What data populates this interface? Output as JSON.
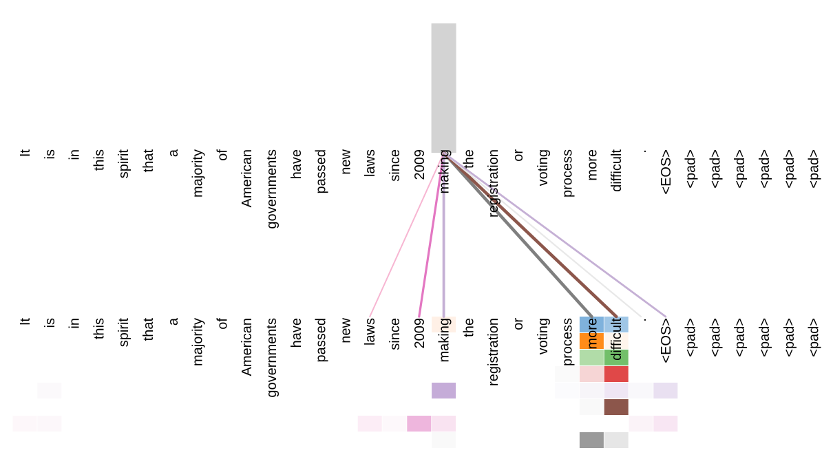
{
  "tokens": [
    "It",
    "is",
    "in",
    "this",
    "spirit",
    "that",
    "a",
    "majority",
    "of",
    "American",
    "governments",
    "have",
    "passed",
    "new",
    "laws",
    "since",
    "2009",
    "making",
    "the",
    "registration",
    "or",
    "voting",
    "process",
    "more",
    "difficult",
    ".",
    "<EOS>",
    "<pad>",
    "<pad>",
    "<pad>",
    "<pad>",
    "<pad>",
    "<pad>"
  ],
  "selected_index": 17,
  "highlight_color": "#d3d3d3",
  "attention_links": [
    {
      "target": 14,
      "color": "#f7b6d2",
      "weight": 0.25
    },
    {
      "target": 16,
      "color": "#e377c2",
      "weight": 0.55
    },
    {
      "target": 17,
      "color": "#c5b0d5",
      "weight": 0.7
    },
    {
      "target": 23,
      "color": "#7f7f7f",
      "weight": 0.9
    },
    {
      "target": 24,
      "color": "#8c564b",
      "weight": 0.9
    },
    {
      "target": 25,
      "color": "#e8e8e8",
      "weight": 0.3
    },
    {
      "target": 26,
      "color": "#c5b0d5",
      "weight": 0.45
    }
  ],
  "head_cells": [
    {
      "token": 17,
      "head": 0,
      "color": "#fff0e6"
    },
    {
      "token": 23,
      "head": 0,
      "color": "#7fb2dc"
    },
    {
      "token": 24,
      "head": 0,
      "color": "#9fc6e6"
    },
    {
      "token": 23,
      "head": 1,
      "color": "#ff8c1a"
    },
    {
      "token": 24,
      "head": 1,
      "color": "#fff5ec"
    },
    {
      "token": 23,
      "head": 2,
      "color": "#b1dca8"
    },
    {
      "token": 24,
      "head": 2,
      "color": "#72bf6a"
    },
    {
      "token": 22,
      "head": 3,
      "color": "#fafafa"
    },
    {
      "token": 23,
      "head": 3,
      "color": "#f6d5d5"
    },
    {
      "token": 24,
      "head": 3,
      "color": "#e04848"
    },
    {
      "token": 1,
      "head": 4,
      "color": "#fbf9fb"
    },
    {
      "token": 17,
      "head": 4,
      "color": "#c5acd8"
    },
    {
      "token": 22,
      "head": 4,
      "color": "#fbfbfd"
    },
    {
      "token": 23,
      "head": 4,
      "color": "#f7f5f9"
    },
    {
      "token": 24,
      "head": 4,
      "color": "#efe6f4"
    },
    {
      "token": 25,
      "head": 4,
      "color": "#f9f8fb"
    },
    {
      "token": 26,
      "head": 4,
      "color": "#e9e0f1"
    },
    {
      "token": 23,
      "head": 5,
      "color": "#f9f9f9"
    },
    {
      "token": 24,
      "head": 5,
      "color": "#8c564b"
    },
    {
      "token": 0,
      "head": 6,
      "color": "#fdf7fa"
    },
    {
      "token": 1,
      "head": 6,
      "color": "#fcf7fa"
    },
    {
      "token": 14,
      "head": 6,
      "color": "#fcedf6"
    },
    {
      "token": 15,
      "head": 6,
      "color": "#fdf8fb"
    },
    {
      "token": 16,
      "head": 6,
      "color": "#eeb6dd"
    },
    {
      "token": 17,
      "head": 6,
      "color": "#f9e3f1"
    },
    {
      "token": 25,
      "head": 6,
      "color": "#fbf3f8"
    },
    {
      "token": 26,
      "head": 6,
      "color": "#f8e6f3"
    },
    {
      "token": 17,
      "head": 7,
      "color": "#f9f9f9"
    },
    {
      "token": 23,
      "head": 7,
      "color": "#9a9a9a"
    },
    {
      "token": 24,
      "head": 7,
      "color": "#e6e6e6"
    }
  ]
}
